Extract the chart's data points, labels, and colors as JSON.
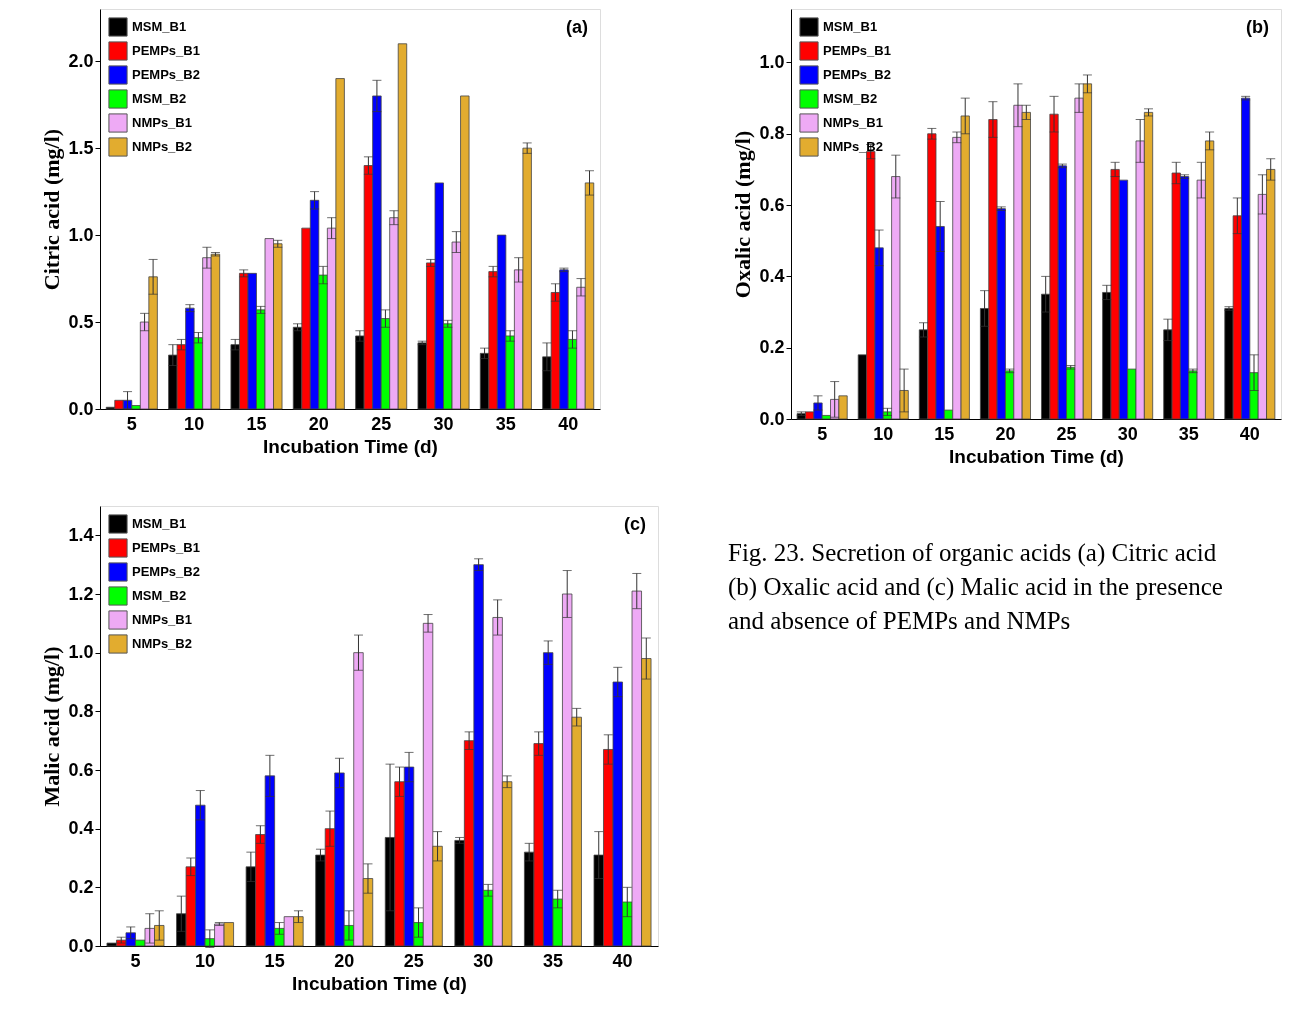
{
  "chart_data": [
    {
      "type": "bar",
      "title": "(a)",
      "xlabel": "Incubation Time (d)",
      "ylabel": "Citric acid (mg/l)",
      "legend": "top left",
      "grid": false,
      "categories": [
        "5",
        "10",
        "15",
        "20",
        "25",
        "30",
        "35",
        "40"
      ],
      "ylim": [
        0,
        2.3
      ],
      "yticks": [
        {
          "value": 0,
          "label": "0.0"
        },
        {
          "value": 0.5,
          "label": "0.5"
        },
        {
          "value": 1,
          "label": "1.0"
        },
        {
          "value": 1.5,
          "label": "1.5"
        },
        {
          "value": 2,
          "label": "2.0"
        }
      ],
      "series": [
        {
          "name": "MSM_B1",
          "color": "#000000",
          "values": [
            0.01,
            0.31,
            0.37,
            0.47,
            0.42,
            0.38,
            0.32,
            0.3
          ],
          "errors": [
            null,
            0.06,
            0.03,
            0.02,
            0.03,
            0.01,
            0.03,
            0.08
          ]
        },
        {
          "name": "PEMPs_B1",
          "color": "#ff0000",
          "values": [
            0.05,
            0.37,
            0.78,
            1.04,
            1.4,
            0.84,
            0.79,
            0.67
          ],
          "errors": [
            null,
            0.03,
            0.02,
            null,
            0.05,
            0.02,
            0.03,
            0.05
          ]
        },
        {
          "name": "PEMPs_B2",
          "color": "#0000ff",
          "values": [
            0.05,
            0.58,
            0.78,
            1.2,
            1.8,
            1.3,
            1.0,
            0.8
          ],
          "errors": [
            0.05,
            0.02,
            null,
            0.05,
            0.09,
            null,
            null,
            0.01
          ]
        },
        {
          "name": "MSM_B2",
          "color": "#00ff00",
          "values": [
            0.02,
            0.41,
            0.57,
            0.77,
            0.52,
            0.49,
            0.42,
            0.4
          ],
          "errors": [
            null,
            0.03,
            0.02,
            0.05,
            0.05,
            0.02,
            0.03,
            0.05
          ]
        },
        {
          "name": "NMPs_B1",
          "color": "#eeaaf5",
          "values": [
            0.5,
            0.87,
            0.98,
            1.04,
            1.1,
            0.96,
            0.8,
            0.7
          ],
          "errors": [
            0.05,
            0.06,
            null,
            0.06,
            0.04,
            0.06,
            0.07,
            0.05
          ]
        },
        {
          "name": "NMPs_B2",
          "color": "#e2ac2f",
          "values": [
            0.76,
            0.89,
            0.95,
            1.9,
            2.1,
            1.8,
            1.5,
            1.3
          ],
          "errors": [
            0.1,
            0.01,
            0.02,
            null,
            null,
            null,
            0.03,
            0.07
          ]
        }
      ]
    },
    {
      "type": "bar",
      "title": "(b)",
      "xlabel": "Incubation Time (d)",
      "ylabel": "Oxalic acid (mg/l)",
      "legend": "top left",
      "grid": false,
      "categories": [
        "5",
        "10",
        "15",
        "20",
        "25",
        "30",
        "35",
        "40"
      ],
      "ylim": [
        0,
        1.15
      ],
      "yticks": [
        {
          "value": 0,
          "label": "0.0"
        },
        {
          "value": 0.2,
          "label": "0.2"
        },
        {
          "value": 0.4,
          "label": "0.4"
        },
        {
          "value": 0.6,
          "label": "0.6"
        },
        {
          "value": 0.8,
          "label": "0.8"
        },
        {
          "value": 1,
          "label": "1.0"
        }
      ],
      "series": [
        {
          "name": "MSM_B1",
          "color": "#000000",
          "values": [
            0.015,
            0.18,
            0.25,
            0.31,
            0.35,
            0.355,
            0.25,
            0.31
          ],
          "errors": [
            0.005,
            null,
            0.02,
            0.05,
            0.05,
            0.02,
            0.03,
            0.005
          ]
        },
        {
          "name": "PEMPs_B1",
          "color": "#ff0000",
          "values": [
            0.02,
            0.75,
            0.8,
            0.84,
            0.855,
            0.7,
            0.69,
            0.57
          ],
          "errors": [
            null,
            0.02,
            0.015,
            0.05,
            0.05,
            0.02,
            0.03,
            0.05
          ]
        },
        {
          "name": "PEMPs_B2",
          "color": "#0000ff",
          "values": [
            0.045,
            0.48,
            0.54,
            0.59,
            0.71,
            0.67,
            0.68,
            0.9
          ],
          "errors": [
            0.02,
            0.05,
            0.07,
            0.005,
            0.005,
            null,
            0.005,
            0.005
          ]
        },
        {
          "name": "MSM_B2",
          "color": "#00ff00",
          "values": [
            0.01,
            0.02,
            0.025,
            0.135,
            0.145,
            0.14,
            0.135,
            0.13
          ],
          "errors": [
            null,
            0.01,
            null,
            0.005,
            0.005,
            null,
            0.005,
            0.05
          ]
        },
        {
          "name": "NMPs_B1",
          "color": "#eeaaf5",
          "values": [
            0.055,
            0.68,
            0.79,
            0.88,
            0.9,
            0.78,
            0.67,
            0.63
          ],
          "errors": [
            0.05,
            0.06,
            0.015,
            0.06,
            0.04,
            0.06,
            0.05,
            0.055
          ]
        },
        {
          "name": "NMPs_B2",
          "color": "#e2ac2f",
          "values": [
            0.065,
            0.08,
            0.85,
            0.86,
            0.94,
            0.86,
            0.78,
            0.7
          ],
          "errors": [
            null,
            0.06,
            0.05,
            0.02,
            0.025,
            0.01,
            0.025,
            0.03
          ]
        }
      ]
    },
    {
      "type": "bar",
      "title": "(c)",
      "xlabel": "Incubation Time (d)",
      "ylabel": "Malic acid (mg/l)",
      "legend": "top left",
      "grid": false,
      "categories": [
        "5",
        "10",
        "15",
        "20",
        "25",
        "30",
        "35",
        "40"
      ],
      "ylim": [
        0,
        1.5
      ],
      "yticks": [
        {
          "value": 0,
          "label": "0.0"
        },
        {
          "value": 0.2,
          "label": "0.2"
        },
        {
          "value": 0.4,
          "label": "0.4"
        },
        {
          "value": 0.6,
          "label": "0.6"
        },
        {
          "value": 0.8,
          "label": "0.8"
        },
        {
          "value": 1,
          "label": "1.0"
        },
        {
          "value": 1.2,
          "label": "1.2"
        },
        {
          "value": 1.4,
          "label": "1.4"
        }
      ],
      "annotations": [
        "Fig. 23. Secretion of organic acids (a) Citric acid (b) Oxalic acid and (c) Malic acid in the presence and absence of PEMPs and NMPs"
      ],
      "series": [
        {
          "name": "MSM_B1",
          "color": "#000000",
          "values": [
            0.01,
            0.11,
            0.27,
            0.31,
            0.37,
            0.36,
            0.32,
            0.31
          ],
          "errors": [
            null,
            0.06,
            0.05,
            0.02,
            0.25,
            0.01,
            0.03,
            0.08
          ]
        },
        {
          "name": "PEMPs_B1",
          "color": "#ff0000",
          "values": [
            0.02,
            0.27,
            0.38,
            0.4,
            0.56,
            0.7,
            0.69,
            0.67
          ],
          "errors": [
            0.01,
            0.03,
            0.03,
            0.06,
            0.05,
            0.03,
            0.04,
            0.05
          ]
        },
        {
          "name": "PEMPs_B2",
          "color": "#0000ff",
          "values": [
            0.045,
            0.48,
            0.58,
            0.59,
            0.61,
            1.3,
            1.0,
            0.9
          ],
          "errors": [
            0.02,
            0.05,
            0.07,
            0.05,
            0.05,
            0.02,
            0.04,
            0.05
          ]
        },
        {
          "name": "MSM_B2",
          "color": "#00ff00",
          "values": [
            0.02,
            0.025,
            0.06,
            0.07,
            0.08,
            0.19,
            0.16,
            0.15
          ],
          "errors": [
            null,
            0.03,
            0.02,
            0.05,
            0.05,
            0.02,
            0.03,
            0.05
          ]
        },
        {
          "name": "NMPs_B1",
          "color": "#eeaaf5",
          "values": [
            0.06,
            0.075,
            0.1,
            1.0,
            1.1,
            1.12,
            1.2,
            1.21
          ],
          "errors": [
            0.05,
            0.005,
            null,
            0.06,
            0.03,
            0.06,
            0.08,
            0.06
          ]
        },
        {
          "name": "NMPs_B2",
          "color": "#e2ac2f",
          "values": [
            0.07,
            0.08,
            0.1,
            0.23,
            0.34,
            0.56,
            0.78,
            0.98
          ],
          "errors": [
            0.05,
            null,
            0.02,
            0.05,
            0.05,
            0.02,
            0.03,
            0.07
          ]
        }
      ]
    }
  ]
}
